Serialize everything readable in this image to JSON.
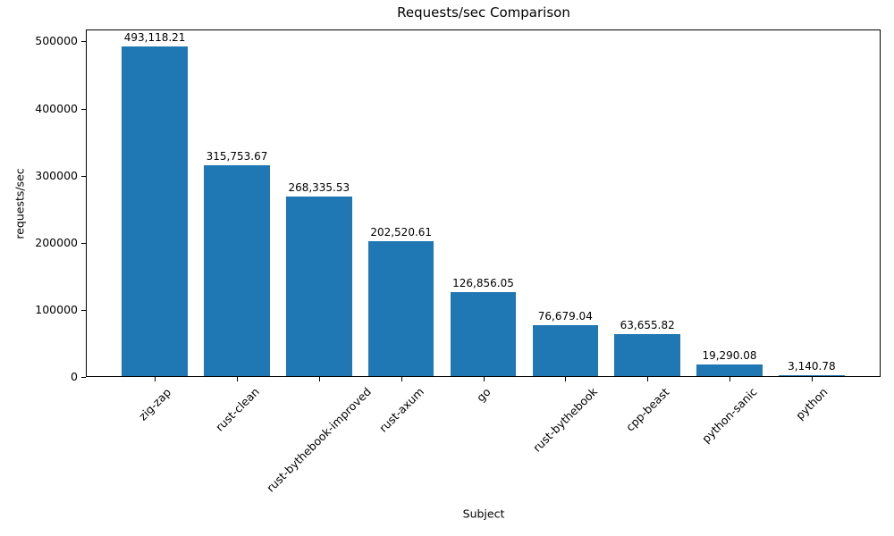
{
  "chart_data": {
    "type": "bar",
    "title": "Requests/sec Comparison",
    "xlabel": "Subject",
    "ylabel": "requests/sec",
    "categories": [
      "zig-zap",
      "rust-clean",
      "rust-bythebook-improved",
      "rust-axum",
      "go",
      "rust-bythebook",
      "cpp-beast",
      "python-sanic",
      "python"
    ],
    "values": [
      493118.21,
      315753.67,
      268335.53,
      202520.61,
      126856.05,
      76679.04,
      63655.82,
      19290.08,
      3140.78
    ],
    "value_labels": [
      "493,118.21",
      "315,753.67",
      "268,335.53",
      "202,520.61",
      "126,856.05",
      "76,679.04",
      "63,655.82",
      "19,290.08",
      "3,140.78"
    ],
    "yticks": [
      0,
      100000,
      200000,
      300000,
      400000,
      500000
    ],
    "ytick_labels": [
      "0",
      "100000",
      "200000",
      "300000",
      "400000",
      "500000"
    ],
    "ylim": [
      0,
      517774
    ],
    "xlim": [
      -0.84,
      8.84
    ],
    "bar_width": 0.8,
    "bar_color": "#1f77b4",
    "grid": false,
    "legend_position": null
  }
}
